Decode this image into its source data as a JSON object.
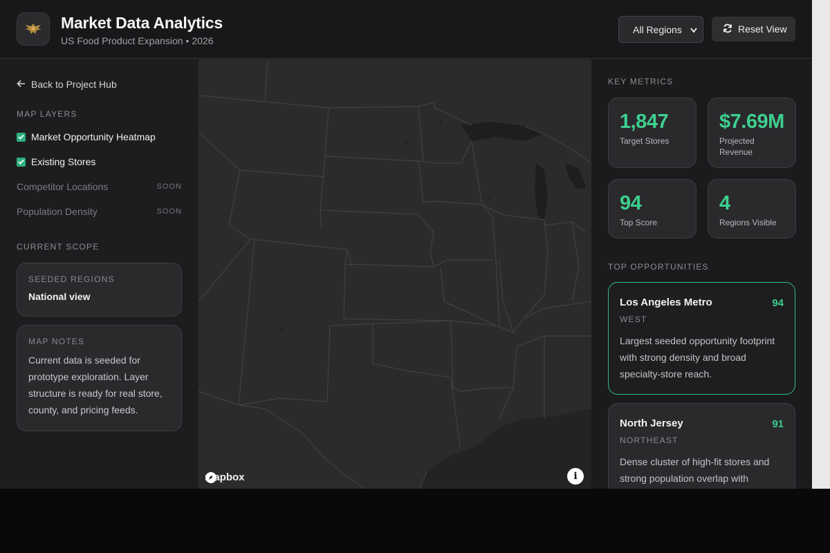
{
  "header": {
    "title": "Market Data Analytics",
    "subtitle": "US Food Product Expansion • 2026",
    "region_select": "All Regions",
    "reset_label": "Reset View",
    "logo_icon": "eagle-emblem-icon"
  },
  "sidebar": {
    "back_label": "Back to Project Hub",
    "layers_heading": "MAP LAYERS",
    "layers": [
      {
        "label": "Market Opportunity Heatmap",
        "checked": true
      },
      {
        "label": "Existing Stores",
        "checked": true
      },
      {
        "label": "Competitor Locations",
        "badge": "SOON"
      },
      {
        "label": "Population Density",
        "badge": "SOON"
      }
    ],
    "scope_heading": "CURRENT SCOPE",
    "seeded": {
      "label": "SEEDED REGIONS",
      "value": "National view"
    },
    "notes": {
      "label": "MAP NOTES",
      "text": "Current data is seeded for prototype exploration. Layer structure is ready for real store, county, and pricing feeds."
    }
  },
  "map": {
    "attribution": "mapbox",
    "info_icon": "info-icon"
  },
  "metrics": {
    "heading": "KEY METRICS",
    "items": [
      {
        "value": "1,847",
        "label": "Target Stores"
      },
      {
        "value": "$7.69M",
        "label": "Projected Revenue"
      },
      {
        "value": "94",
        "label": "Top Score"
      },
      {
        "value": "4",
        "label": "Regions Visible"
      }
    ]
  },
  "opportunities": {
    "heading": "TOP OPPORTUNITIES",
    "items": [
      {
        "name": "Los Angeles Metro",
        "score": "94",
        "region": "WEST",
        "desc": "Largest seeded opportunity footprint with strong density and broad specialty-store reach."
      },
      {
        "name": "North Jersey",
        "score": "91",
        "region": "NORTHEAST",
        "desc": "Dense cluster of high-fit stores and strong population overlap with"
      }
    ]
  },
  "colors": {
    "accent": "#3ecf8e",
    "panel": "#2a2a2d",
    "background": "#1b1b1d"
  }
}
